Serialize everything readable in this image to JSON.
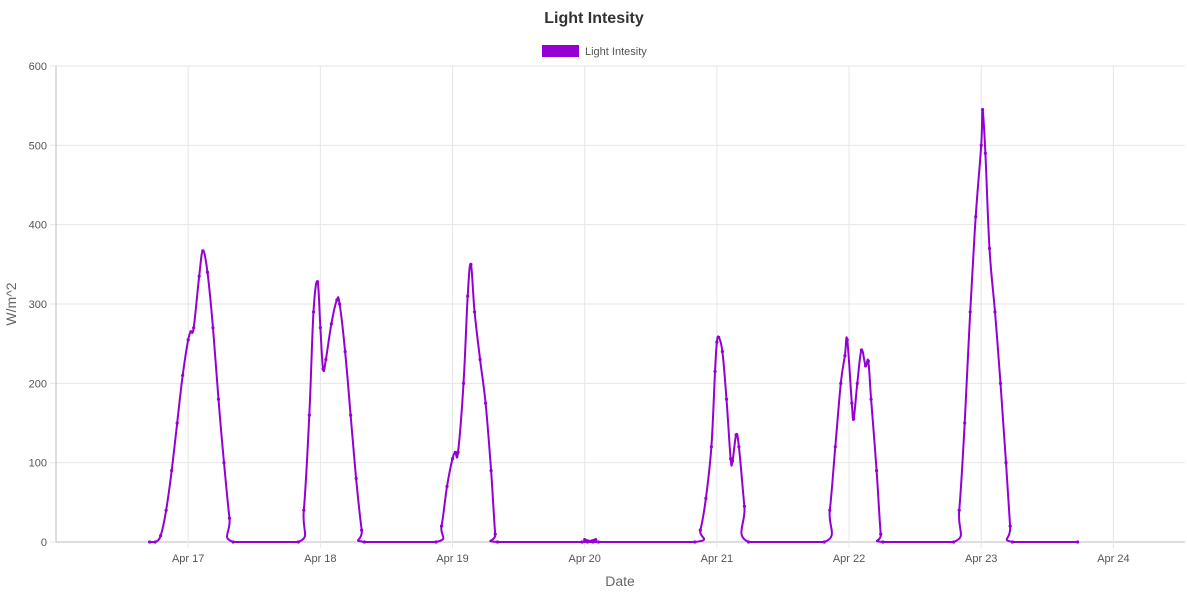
{
  "chart_data": {
    "type": "line",
    "title": "Light Intesity",
    "xlabel": "Date",
    "ylabel": "W/m^2",
    "ylim": [
      0,
      600
    ],
    "yticks": [
      0,
      100,
      200,
      300,
      400,
      500,
      600
    ],
    "xlim": [
      "2019-04-16T00:00",
      "2019-04-24T13:00"
    ],
    "xticks": [
      "2019-04-17T00:00",
      "2019-04-18T00:00",
      "2019-04-19T00:00",
      "2019-04-20T00:00",
      "2019-04-21T00:00",
      "2019-04-22T00:00",
      "2019-04-23T00:00",
      "2019-04-24T00:00"
    ],
    "xtick_labels": [
      "Apr 17",
      "Apr 18",
      "Apr 19",
      "Apr 20",
      "Apr 21",
      "Apr 22",
      "Apr 23",
      "Apr 24"
    ],
    "grid": true,
    "legend_position": "top",
    "series": [
      {
        "name": "Light Intesity",
        "color": "#9400d3",
        "points": [
          [
            "2019-04-16T17:00",
            0
          ],
          [
            "2019-04-16T18:00",
            0
          ],
          [
            "2019-04-16T19:00",
            8
          ],
          [
            "2019-04-16T20:00",
            40
          ],
          [
            "2019-04-16T21:00",
            90
          ],
          [
            "2019-04-16T22:00",
            150
          ],
          [
            "2019-04-16T23:00",
            210
          ],
          [
            "2019-04-17T00:00",
            255
          ],
          [
            "2019-04-17T00:30",
            265
          ],
          [
            "2019-04-17T01:00",
            270
          ],
          [
            "2019-04-17T02:00",
            335
          ],
          [
            "2019-04-17T02:40",
            367
          ],
          [
            "2019-04-17T03:30",
            340
          ],
          [
            "2019-04-17T04:30",
            270
          ],
          [
            "2019-04-17T05:30",
            180
          ],
          [
            "2019-04-17T06:30",
            100
          ],
          [
            "2019-04-17T07:30",
            30
          ],
          [
            "2019-04-17T08:10",
            0
          ],
          [
            "2019-04-17T20:00",
            0
          ],
          [
            "2019-04-17T21:00",
            40
          ],
          [
            "2019-04-17T22:00",
            160
          ],
          [
            "2019-04-17T22:45",
            290
          ],
          [
            "2019-04-17T23:30",
            328
          ],
          [
            "2019-04-18T00:00",
            270
          ],
          [
            "2019-04-18T00:30",
            218
          ],
          [
            "2019-04-18T01:00",
            230
          ],
          [
            "2019-04-18T02:00",
            275
          ],
          [
            "2019-04-18T03:00",
            305
          ],
          [
            "2019-04-18T03:30",
            300
          ],
          [
            "2019-04-18T04:30",
            240
          ],
          [
            "2019-04-18T05:30",
            160
          ],
          [
            "2019-04-18T06:30",
            80
          ],
          [
            "2019-04-18T07:30",
            15
          ],
          [
            "2019-04-18T08:00",
            0
          ],
          [
            "2019-04-18T21:00",
            0
          ],
          [
            "2019-04-18T22:00",
            20
          ],
          [
            "2019-04-18T23:00",
            70
          ],
          [
            "2019-04-19T00:00",
            105
          ],
          [
            "2019-04-19T00:30",
            113
          ],
          [
            "2019-04-19T01:00",
            113
          ],
          [
            "2019-04-19T02:00",
            200
          ],
          [
            "2019-04-19T02:45",
            310
          ],
          [
            "2019-04-19T03:20",
            350
          ],
          [
            "2019-04-19T04:00",
            290
          ],
          [
            "2019-04-19T05:00",
            230
          ],
          [
            "2019-04-19T06:00",
            175
          ],
          [
            "2019-04-19T07:00",
            90
          ],
          [
            "2019-04-19T07:45",
            10
          ],
          [
            "2019-04-19T08:10",
            0
          ],
          [
            "2019-04-19T23:30",
            0
          ],
          [
            "2019-04-20T00:00",
            3
          ],
          [
            "2019-04-20T00:30",
            0
          ],
          [
            "2019-04-20T01:30",
            0
          ],
          [
            "2019-04-20T02:00",
            3
          ],
          [
            "2019-04-20T02:30",
            0
          ],
          [
            "2019-04-20T20:00",
            0
          ],
          [
            "2019-04-20T21:00",
            15
          ],
          [
            "2019-04-20T22:00",
            55
          ],
          [
            "2019-04-20T23:00",
            120
          ],
          [
            "2019-04-20T23:40",
            215
          ],
          [
            "2019-04-21T00:00",
            252
          ],
          [
            "2019-04-21T00:20",
            258
          ],
          [
            "2019-04-21T01:00",
            240
          ],
          [
            "2019-04-21T01:45",
            180
          ],
          [
            "2019-04-21T02:30",
            105
          ],
          [
            "2019-04-21T02:50",
            102
          ],
          [
            "2019-04-21T03:30",
            135
          ],
          [
            "2019-04-21T04:00",
            120
          ],
          [
            "2019-04-21T05:00",
            45
          ],
          [
            "2019-04-21T05:45",
            0
          ],
          [
            "2019-04-21T19:30",
            0
          ],
          [
            "2019-04-21T20:30",
            40
          ],
          [
            "2019-04-21T21:30",
            120
          ],
          [
            "2019-04-21T22:30",
            200
          ],
          [
            "2019-04-21T23:15",
            235
          ],
          [
            "2019-04-21T23:40",
            255
          ],
          [
            "2019-04-22T00:30",
            175
          ],
          [
            "2019-04-22T00:50",
            155
          ],
          [
            "2019-04-22T01:30",
            200
          ],
          [
            "2019-04-22T02:15",
            242
          ],
          [
            "2019-04-22T03:00",
            222
          ],
          [
            "2019-04-22T03:30",
            228
          ],
          [
            "2019-04-22T04:00",
            180
          ],
          [
            "2019-04-22T05:00",
            90
          ],
          [
            "2019-04-22T05:45",
            10
          ],
          [
            "2019-04-22T06:10",
            0
          ],
          [
            "2019-04-22T19:00",
            0
          ],
          [
            "2019-04-22T20:00",
            40
          ],
          [
            "2019-04-22T21:00",
            150
          ],
          [
            "2019-04-22T22:00",
            290
          ],
          [
            "2019-04-22T23:00",
            410
          ],
          [
            "2019-04-23T00:00",
            500
          ],
          [
            "2019-04-23T00:15",
            545
          ],
          [
            "2019-04-23T00:45",
            490
          ],
          [
            "2019-04-23T01:30",
            370
          ],
          [
            "2019-04-23T02:30",
            290
          ],
          [
            "2019-04-23T03:30",
            200
          ],
          [
            "2019-04-23T04:30",
            100
          ],
          [
            "2019-04-23T05:15",
            20
          ],
          [
            "2019-04-23T05:40",
            0
          ],
          [
            "2019-04-23T17:30",
            0
          ]
        ]
      }
    ]
  }
}
